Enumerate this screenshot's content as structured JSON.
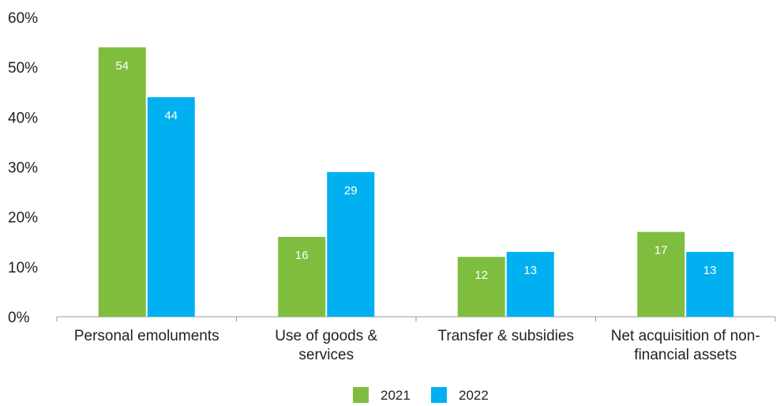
{
  "chart_data": {
    "type": "bar",
    "categories": [
      [
        "Personal emoluments"
      ],
      [
        "Use of goods &",
        "services"
      ],
      [
        "Transfer & subsidies"
      ],
      [
        "Net acquisition of non-",
        "financial assets"
      ]
    ],
    "series": [
      {
        "name": "2021",
        "color": "#7fbd3f",
        "values": [
          54,
          16,
          12,
          17
        ],
        "data_labels": [
          "54",
          "16",
          "12",
          "17"
        ]
      },
      {
        "name": "2022",
        "color": "#00b0f0",
        "values": [
          44,
          29,
          13,
          13
        ],
        "data_labels": [
          "44",
          "29",
          "13",
          "13"
        ]
      }
    ],
    "y_ticks": [
      0,
      10,
      20,
      30,
      40,
      50,
      60
    ],
    "y_tick_labels": [
      "0%",
      "10%",
      "20%",
      "30%",
      "40%",
      "50%",
      "60%"
    ],
    "ylim": [
      0,
      60
    ],
    "grid": false,
    "legend_position": "bottom-center",
    "title": "",
    "xlabel": "",
    "ylabel": ""
  }
}
